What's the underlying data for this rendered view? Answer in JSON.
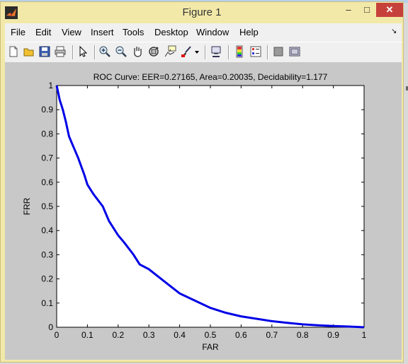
{
  "window": {
    "title": "Figure 1"
  },
  "menu": [
    "File",
    "Edit",
    "View",
    "Insert",
    "Tools",
    "Desktop",
    "Window",
    "Help"
  ],
  "toolbar": [
    "new-figure",
    "open-file",
    "save",
    "print",
    "edit-plot",
    "zoom-in",
    "zoom-out",
    "pan",
    "rotate-3d",
    "data-cursor",
    "brush",
    "brush-menu",
    "link-plot",
    "insert-colorbar",
    "insert-legend",
    "hide-plot-tools",
    "show-plot-tools"
  ],
  "colors": {
    "curve": "#0000e6",
    "axes_bg": "#ffffff",
    "figure_bg": "#c8c8c8",
    "titlebar": "#f2e9a8",
    "close_button": "#c7413b"
  },
  "chart_data": {
    "type": "line",
    "title": "ROC Curve:    EER=0.27165,   Area=0.20035,   Decidability=1.177",
    "xlabel": "FAR",
    "ylabel": "FRR",
    "xlim": [
      0,
      1
    ],
    "ylim": [
      0,
      1
    ],
    "xticks": [
      "0",
      "0.1",
      "0.2",
      "0.3",
      "0.4",
      "0.5",
      "0.6",
      "0.7",
      "0.8",
      "0.9",
      "1"
    ],
    "yticks": [
      "0",
      "0.1",
      "0.2",
      "0.3",
      "0.4",
      "0.5",
      "0.6",
      "0.7",
      "0.8",
      "0.9",
      "1"
    ],
    "grid": false,
    "series": [
      {
        "x": [
          0,
          0.005,
          0.01,
          0.02,
          0.03,
          0.04,
          0.05,
          0.07,
          0.09,
          0.1,
          0.12,
          0.15,
          0.17,
          0.2,
          0.22,
          0.25,
          0.27,
          0.3,
          0.33,
          0.36,
          0.4,
          0.45,
          0.5,
          0.55,
          0.6,
          0.65,
          0.7,
          0.75,
          0.8,
          0.85,
          0.9,
          0.95,
          1
        ],
        "y": [
          1,
          0.97,
          0.94,
          0.9,
          0.85,
          0.79,
          0.76,
          0.7,
          0.63,
          0.59,
          0.55,
          0.5,
          0.44,
          0.38,
          0.35,
          0.3,
          0.26,
          0.24,
          0.21,
          0.18,
          0.14,
          0.11,
          0.08,
          0.06,
          0.045,
          0.035,
          0.025,
          0.018,
          0.012,
          0.008,
          0.005,
          0.003,
          0
        ]
      }
    ]
  }
}
